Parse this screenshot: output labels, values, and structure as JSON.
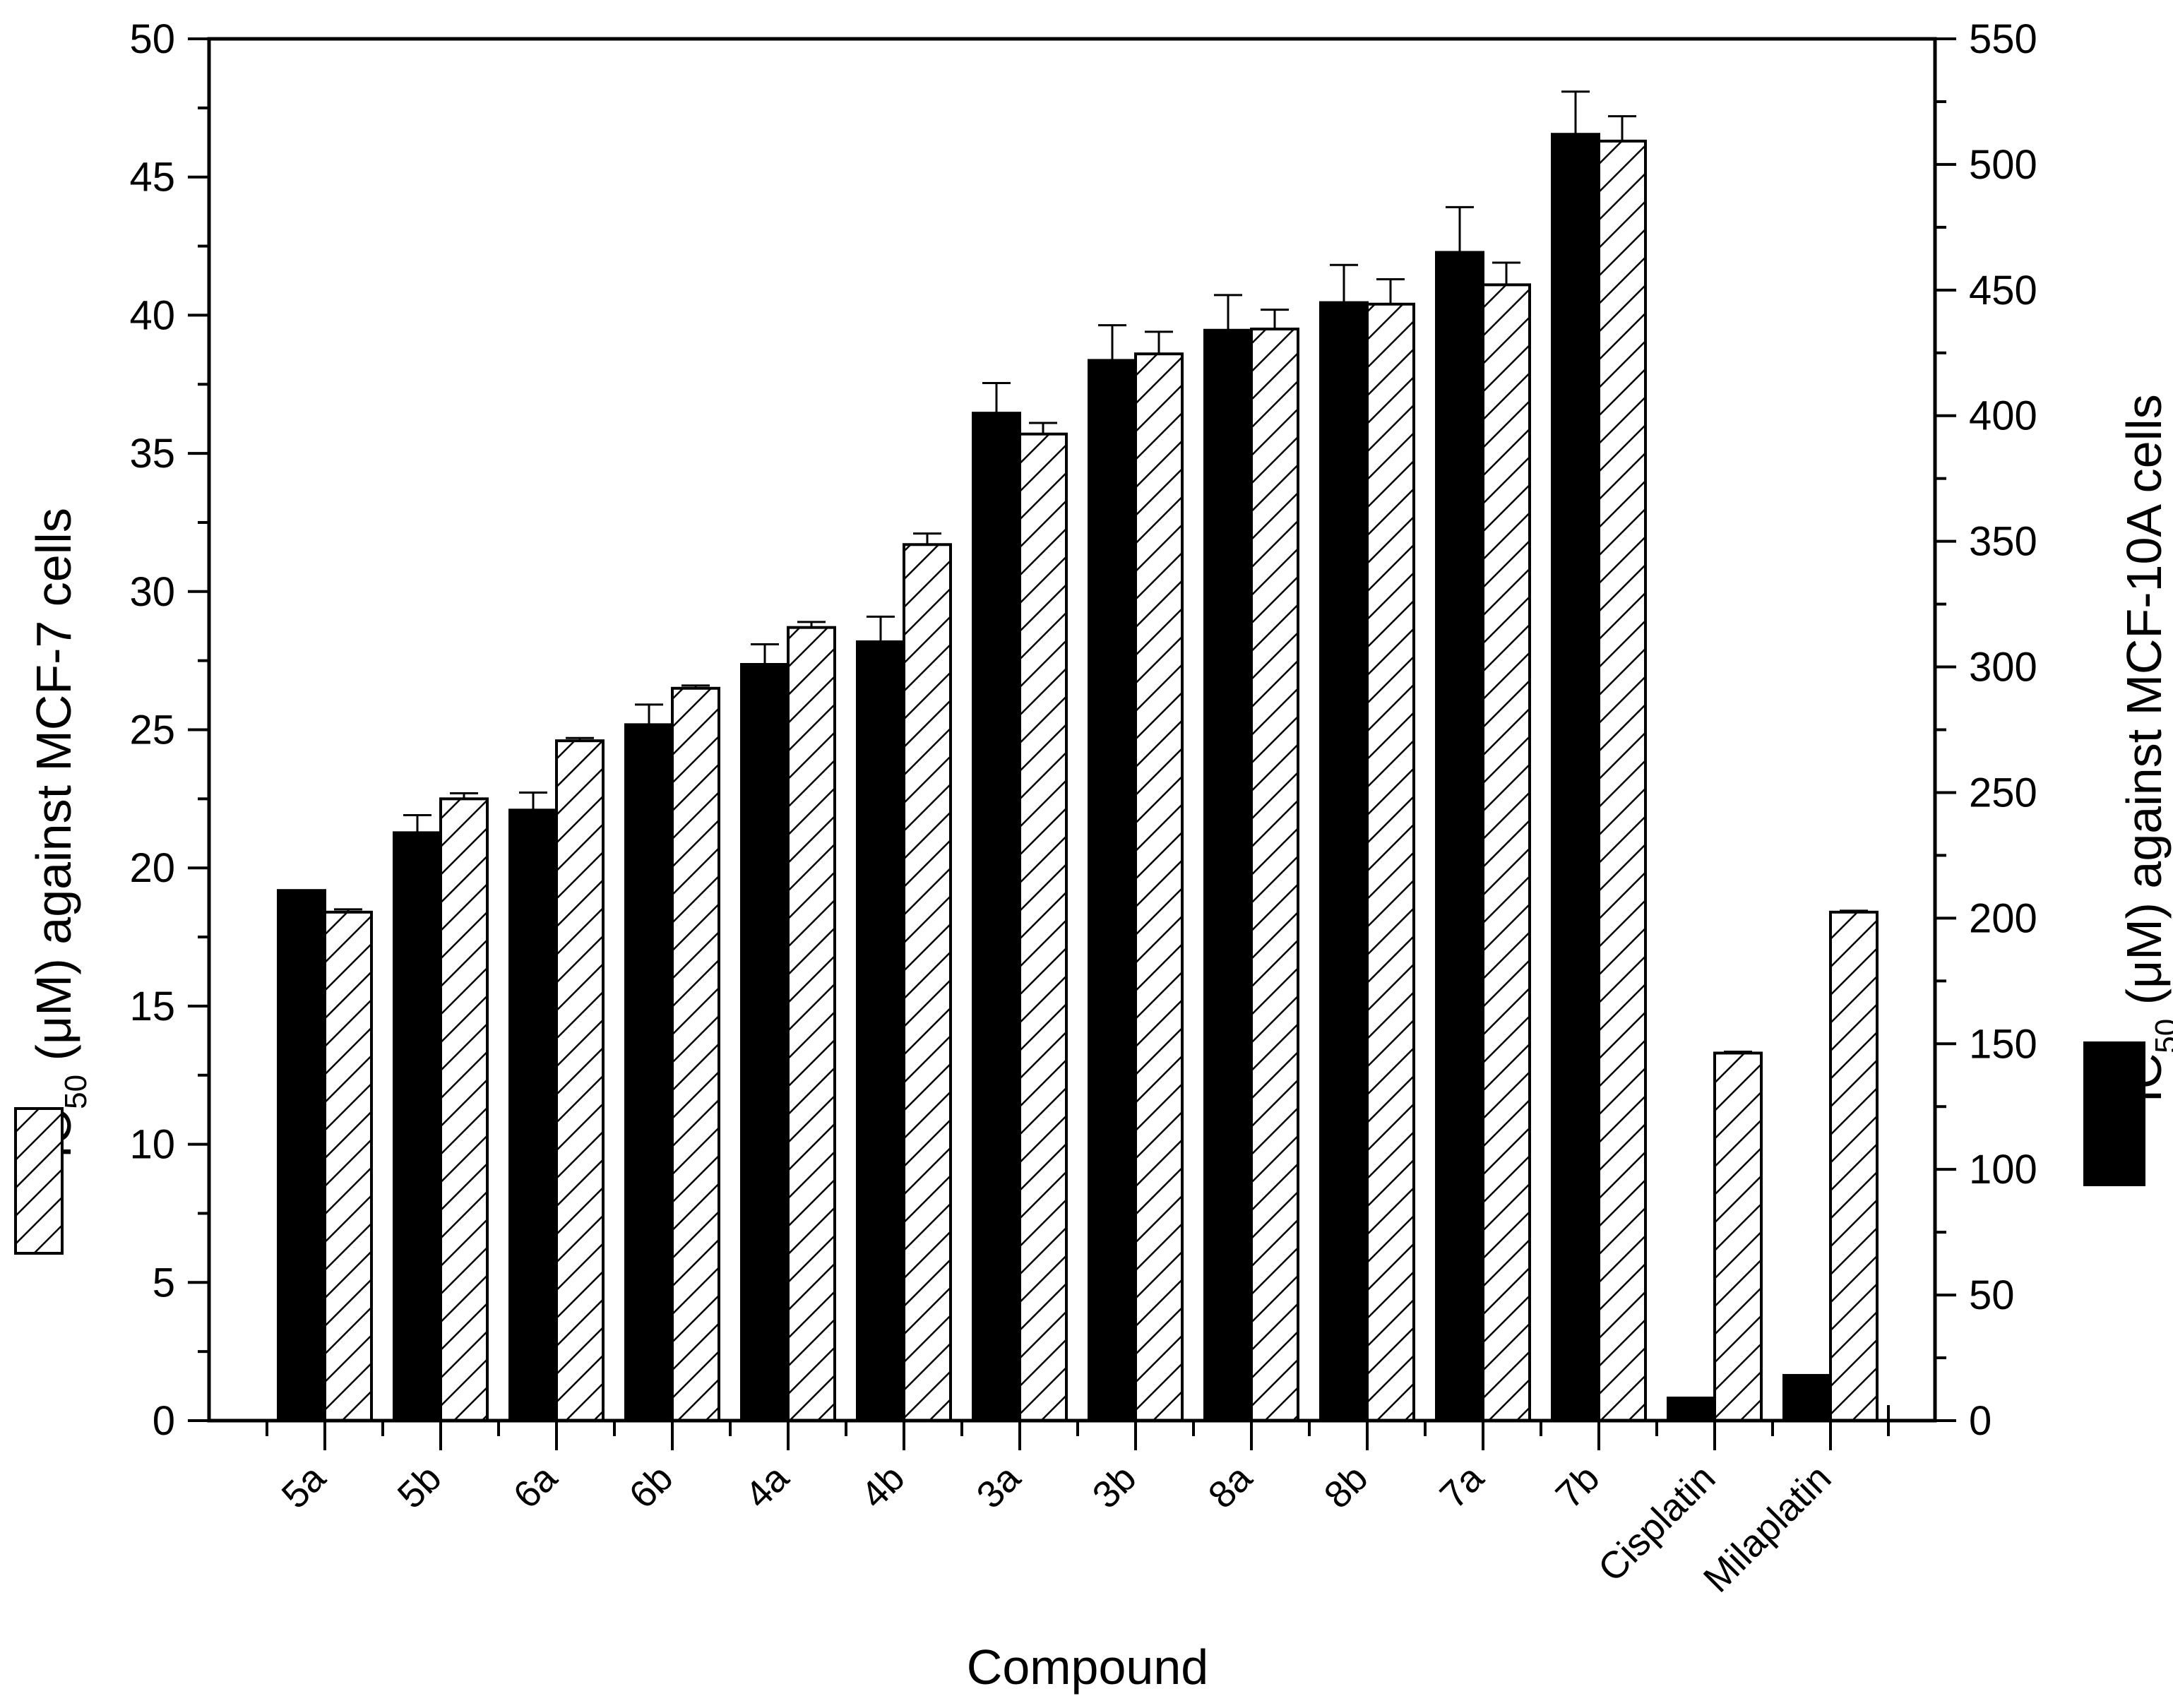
{
  "chart_data": {
    "type": "bar",
    "title": "",
    "xlabel": "Compound",
    "ylabel_left": {
      "prefix": "IC",
      "sub": "50",
      "rest": " (μM) against MCF-7 cells"
    },
    "ylabel_right": {
      "prefix": "IC",
      "sub": "50",
      "rest": " (μM) against MCF-10A cells"
    },
    "left_axis": {
      "range": [
        0,
        50
      ],
      "ticks": [
        "0",
        "5",
        "10",
        "15",
        "20",
        "25",
        "30",
        "35",
        "40",
        "45",
        "50"
      ]
    },
    "right_axis": {
      "range": [
        0,
        550
      ],
      "ticks": [
        "0",
        "50",
        "100",
        "150",
        "200",
        "250",
        "300",
        "350",
        "400",
        "450",
        "500",
        "550"
      ]
    },
    "categories": [
      "5a",
      "5b",
      "6a",
      "6b",
      "4a",
      "4b",
      "3a",
      "3b",
      "8a",
      "8b",
      "7a",
      "7b",
      "Cisplatin",
      "Milaplatin"
    ],
    "series": [
      {
        "name": "IC50 against MCF-10A cells",
        "axis": "right",
        "fill": "solid",
        "color": "#000000",
        "values": [
          211,
          234,
          243,
          277,
          301,
          310,
          401,
          422,
          434,
          445,
          465,
          512,
          9,
          18
        ],
        "errors": [
          0,
          7,
          7,
          8,
          8,
          10,
          12,
          14,
          14,
          15,
          18,
          17,
          0,
          0
        ]
      },
      {
        "name": "IC50 against MCF-7 cells",
        "axis": "left",
        "fill": "hatched",
        "color": "#000000",
        "values": [
          18.4,
          22.5,
          24.6,
          26.5,
          28.7,
          31.7,
          35.7,
          38.6,
          39.5,
          40.4,
          41.1,
          46.3,
          13.3,
          18.4
        ],
        "errors": [
          0.1,
          0.2,
          0.1,
          0.1,
          0.2,
          0.4,
          0.4,
          0.8,
          0.7,
          0.9,
          0.8,
          0.9,
          0.05,
          0.05
        ]
      }
    ]
  }
}
